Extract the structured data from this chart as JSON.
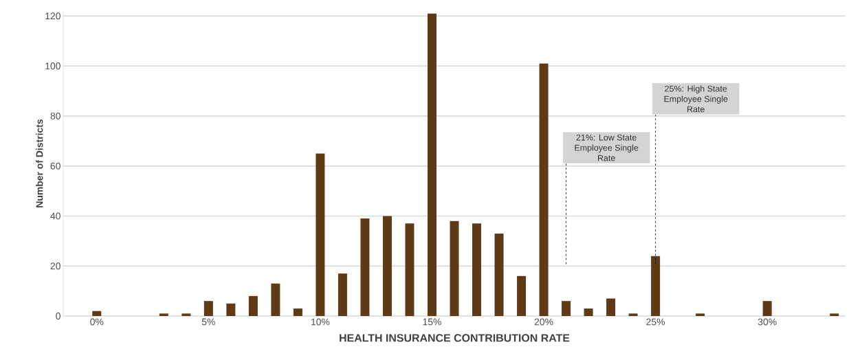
{
  "chart_data": {
    "type": "bar",
    "xlabel": "HEALTH INSURANCE CONTRIBUTION RATE",
    "ylabel": "Number of Districts",
    "x": [
      0,
      3,
      4,
      5,
      6,
      7,
      8,
      9,
      10,
      11,
      12,
      13,
      14,
      15,
      16,
      17,
      18,
      19,
      20,
      21,
      22,
      23,
      24,
      25,
      27,
      30,
      33
    ],
    "values": [
      2,
      1,
      1,
      6,
      5,
      8,
      13,
      3,
      65,
      17,
      39,
      40,
      37,
      121,
      38,
      37,
      33,
      16,
      101,
      6,
      3,
      7,
      1,
      24,
      1,
      6,
      1
    ],
    "color": "#5e3a17",
    "xlim": [
      -1.5,
      33.5
    ],
    "xticks": [
      {
        "value": 0,
        "label": "0%"
      },
      {
        "value": 5,
        "label": "5%"
      },
      {
        "value": 10,
        "label": "10%"
      },
      {
        "value": 15,
        "label": "15%"
      },
      {
        "value": 20,
        "label": "20%"
      },
      {
        "value": 25,
        "label": "25%"
      },
      {
        "value": 30,
        "label": "30%"
      }
    ],
    "ylim": [
      0,
      122
    ],
    "yticks": [
      0,
      20,
      40,
      60,
      80,
      100,
      120
    ],
    "grid": "y",
    "ref_lines": [
      {
        "axis": "x",
        "value": 21,
        "label": "21%: Low State Employee Single Rate",
        "color": "#000000",
        "line_style": "dashed"
      },
      {
        "axis": "x",
        "value": 25,
        "label": "25%: High State Employee Single Rate",
        "color": "#000000",
        "line_style": "dashed"
      }
    ]
  }
}
